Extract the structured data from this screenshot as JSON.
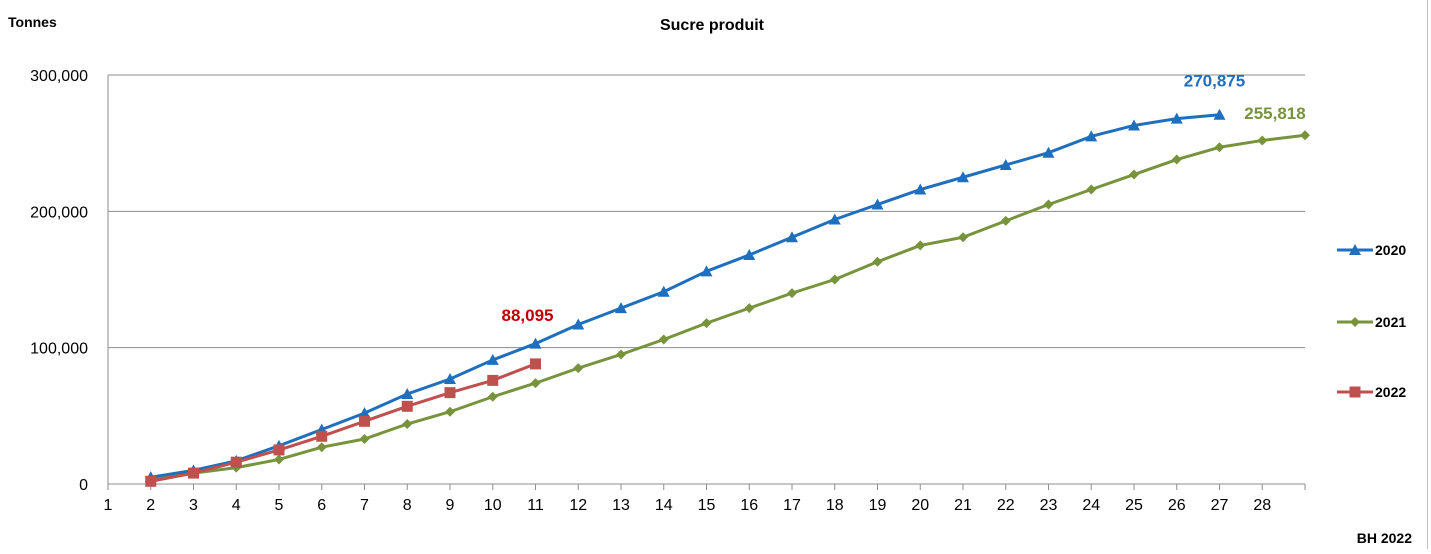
{
  "chart_data": {
    "type": "line",
    "title": "Sucre produit",
    "ylabel": "Tonnes",
    "xlabel": "BH 2022",
    "x": [
      1,
      2,
      3,
      4,
      5,
      6,
      7,
      8,
      9,
      10,
      11,
      12,
      13,
      14,
      15,
      16,
      17,
      18,
      19,
      20,
      21,
      22,
      23,
      24,
      25,
      26,
      27,
      28
    ],
    "ylim": [
      0,
      300000
    ],
    "yticks": [
      {
        "value": 0,
        "label": "0"
      },
      {
        "value": 100000,
        "label": "100,000"
      },
      {
        "value": 200000,
        "label": "200,000"
      },
      {
        "value": 300000,
        "label": "300,000"
      }
    ],
    "grid": true,
    "legend": "right",
    "series": [
      {
        "name": "2020",
        "color": "#1f6fbf",
        "marker": "triangle",
        "x": [
          2,
          3,
          4,
          5,
          6,
          7,
          8,
          9,
          10,
          11,
          12,
          13,
          14,
          15,
          16,
          17,
          18,
          19,
          20,
          21,
          22,
          23,
          24,
          25,
          26,
          27
        ],
        "values": [
          5000,
          10000,
          17000,
          28000,
          40000,
          52000,
          66000,
          77000,
          91000,
          103000,
          117000,
          129000,
          141000,
          156000,
          168000,
          181000,
          194000,
          205000,
          216000,
          225000,
          234000,
          243000,
          255000,
          263000,
          268000,
          270875
        ],
        "end_label": "270,875"
      },
      {
        "name": "2021",
        "color": "#77933c",
        "marker": "diamond",
        "x": [
          2,
          3,
          4,
          5,
          6,
          7,
          8,
          9,
          10,
          11,
          12,
          13,
          14,
          15,
          16,
          17,
          18,
          19,
          20,
          21,
          22,
          23,
          24,
          25,
          26,
          27,
          28,
          29
        ],
        "values": [
          3000,
          8000,
          12000,
          18000,
          27000,
          33000,
          44000,
          53000,
          64000,
          74000,
          85000,
          95000,
          106000,
          118000,
          129000,
          140000,
          150000,
          163000,
          175000,
          181000,
          193000,
          205000,
          216000,
          227000,
          238000,
          247000,
          252000,
          255818
        ],
        "end_label": "255,818"
      },
      {
        "name": "2022",
        "color": "#c0504d",
        "marker": "square",
        "x": [
          2,
          3,
          4,
          5,
          6,
          7,
          8,
          9,
          10,
          11
        ],
        "values": [
          2000,
          8000,
          16000,
          25000,
          35000,
          46000,
          57000,
          67000,
          76000,
          88095
        ],
        "end_label": "88,095",
        "end_label_color": "#c00000"
      }
    ]
  }
}
